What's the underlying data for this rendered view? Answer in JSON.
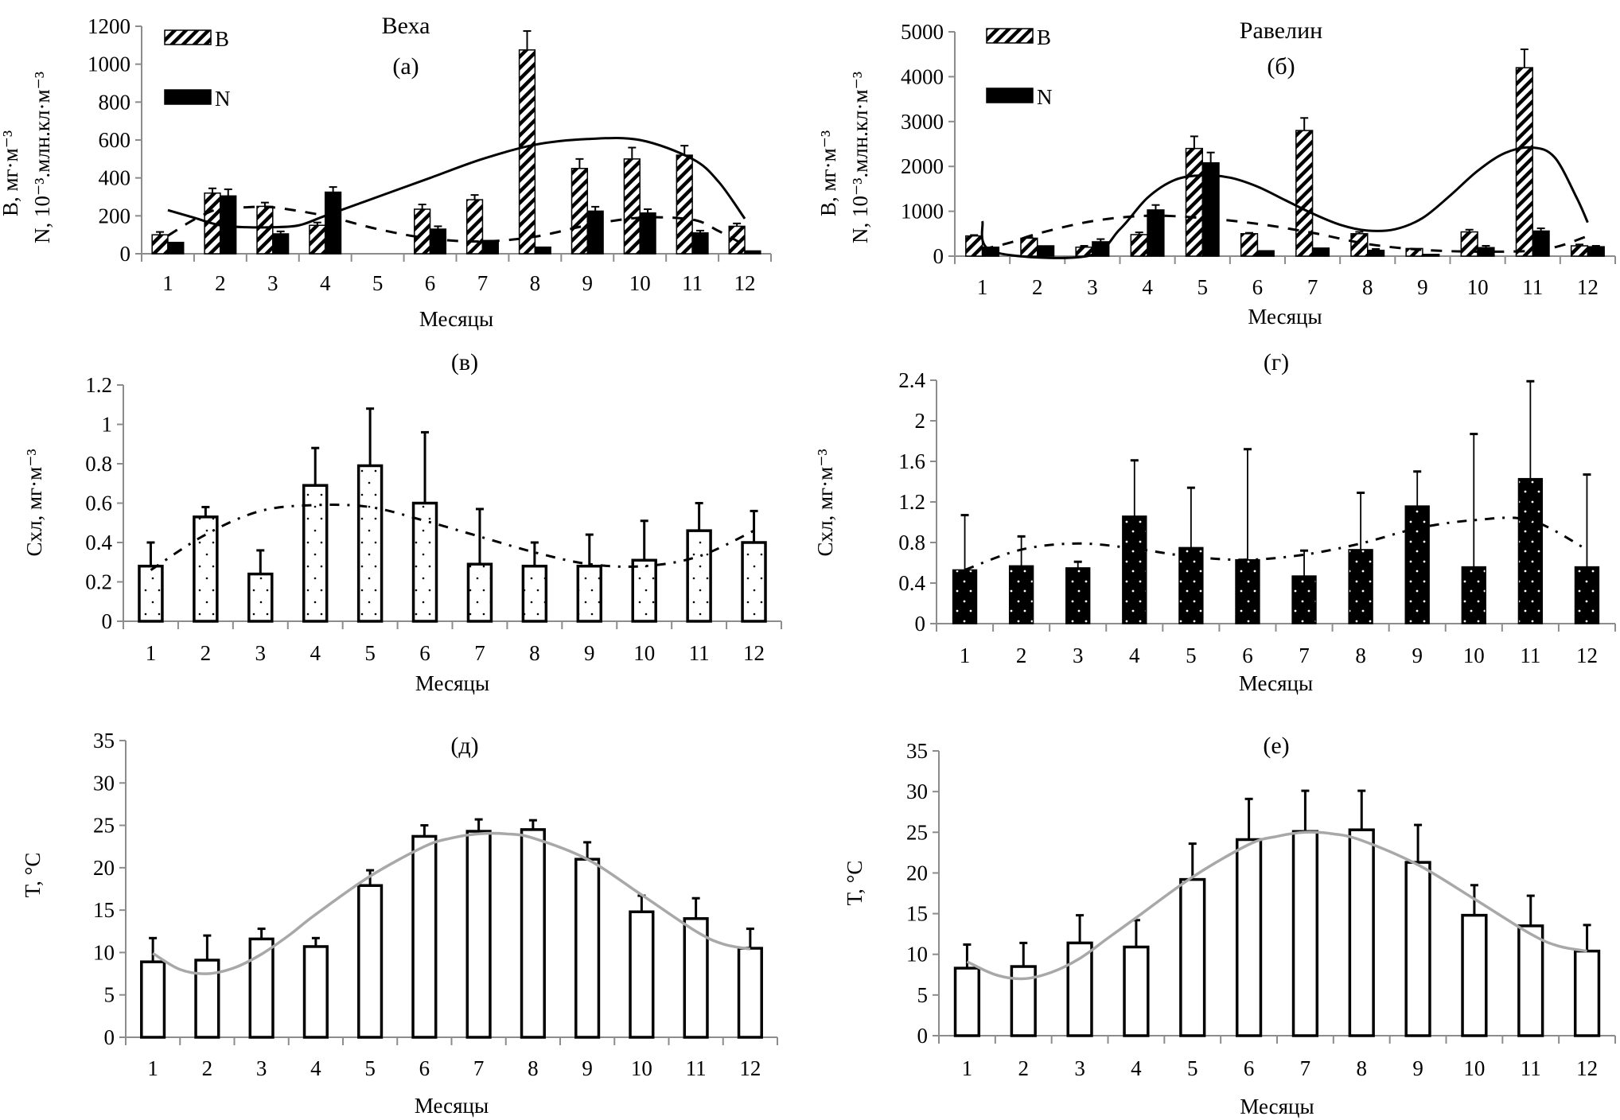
{
  "chart_data": [
    {
      "id": "a",
      "type": "bar",
      "title": "Веха",
      "panel_label": "(а)",
      "xlabel": "Месяцы",
      "ylabel_line1": "B, мг·м⁻³",
      "ylabel_line2": "N, 10⁻³.млн.кл·м⁻³",
      "categories": [
        "1",
        "2",
        "3",
        "4",
        "5",
        "6",
        "7",
        "8",
        "9",
        "10",
        "11",
        "12"
      ],
      "yticks": [
        0,
        200,
        400,
        600,
        800,
        1000,
        1200
      ],
      "ylim": [
        0,
        1200
      ],
      "legend": [
        {
          "name": "B",
          "pattern": "hatch"
        },
        {
          "name": "N",
          "pattern": "solid"
        }
      ],
      "legend_position": "top-left",
      "series": [
        {
          "name": "B",
          "pattern": "hatch",
          "values": [
            100,
            320,
            250,
            150,
            0,
            235,
            285,
            1075,
            450,
            500,
            520,
            145
          ],
          "error_top": [
            115,
            345,
            270,
            165,
            null,
            260,
            310,
            1175,
            500,
            560,
            570,
            160
          ]
        },
        {
          "name": "N",
          "pattern": "solid",
          "values": [
            60,
            305,
            105,
            325,
            0,
            130,
            70,
            35,
            225,
            215,
            110,
            15
          ],
          "error_top": [
            null,
            340,
            118,
            352,
            null,
            145,
            null,
            null,
            248,
            235,
            122,
            null
          ]
        }
      ],
      "trendlines": [
        {
          "name": "B trend",
          "style": "solid",
          "x": [
            1,
            1.5,
            2,
            2.5,
            3,
            3.5,
            4,
            5,
            6,
            7,
            8,
            9,
            10,
            11,
            11.5,
            12
          ],
          "y": [
            230,
            190,
            150,
            140,
            140,
            150,
            200,
            300,
            400,
            500,
            575,
            605,
            600,
            500,
            380,
            185
          ]
        },
        {
          "name": "N trend",
          "style": "dashed",
          "x": [
            1,
            1.5,
            2,
            2.5,
            3,
            4,
            5,
            6,
            7,
            8,
            9,
            10,
            11,
            11.5,
            12
          ],
          "y": [
            95,
            180,
            240,
            245,
            245,
            200,
            130,
            80,
            65,
            90,
            150,
            190,
            180,
            120,
            45
          ]
        }
      ]
    },
    {
      "id": "b",
      "type": "bar",
      "title": "Равелин",
      "panel_label": "(б)",
      "xlabel": "Месяцы",
      "ylabel_line1": "B, мг·м⁻³",
      "ylabel_line2": "N, 10⁻³.млн.кл·м⁻³",
      "categories": [
        "1",
        "2",
        "3",
        "4",
        "5",
        "6",
        "7",
        "8",
        "9",
        "10",
        "11",
        "12"
      ],
      "yticks": [
        0,
        1000,
        2000,
        3000,
        4000,
        5000
      ],
      "ylim": [
        0,
        5000
      ],
      "legend": [
        {
          "name": "B",
          "pattern": "hatch"
        },
        {
          "name": "N",
          "pattern": "solid"
        }
      ],
      "legend_position": "top-left",
      "series": [
        {
          "name": "B",
          "pattern": "hatch",
          "values": [
            450,
            400,
            200,
            480,
            2400,
            500,
            2800,
            500,
            170,
            540,
            4200,
            230
          ],
          "error_top": [
            470,
            420,
            230,
            530,
            2670,
            520,
            3080,
            540,
            null,
            590,
            4610,
            260
          ]
        },
        {
          "name": "N",
          "pattern": "solid",
          "values": [
            200,
            230,
            320,
            1030,
            2080,
            120,
            180,
            130,
            40,
            190,
            560,
            210
          ],
          "error_top": [
            null,
            null,
            380,
            1140,
            2310,
            null,
            null,
            160,
            null,
            230,
            620,
            230
          ]
        }
      ],
      "trendlines": [
        {
          "name": "B trend",
          "style": "solid",
          "x": [
            1,
            1.2,
            2.9,
            3.5,
            4,
            4.5,
            5,
            5.5,
            6,
            6.5,
            7,
            7.5,
            8,
            8.5,
            9,
            9.5,
            10,
            10.5,
            11,
            11.4,
            11.8,
            12
          ],
          "y": [
            780,
            100,
            0,
            600,
            1300,
            1700,
            1800,
            1750,
            1550,
            1250,
            950,
            700,
            570,
            600,
            850,
            1350,
            1900,
            2300,
            2420,
            2200,
            1300,
            750
          ]
        },
        {
          "name": "N trend",
          "style": "dashed",
          "x": [
            1,
            1.5,
            2,
            3,
            4,
            5,
            6,
            7,
            8,
            9,
            10,
            11,
            11.5,
            12
          ],
          "y": [
            150,
            300,
            500,
            780,
            900,
            850,
            720,
            520,
            270,
            140,
            100,
            120,
            230,
            450
          ]
        }
      ]
    },
    {
      "id": "v",
      "type": "bar",
      "title": "",
      "panel_label": "(в)",
      "xlabel": "Месяцы",
      "ylabel": "Cхл, мг·м⁻³",
      "categories": [
        "1",
        "2",
        "3",
        "4",
        "5",
        "6",
        "7",
        "8",
        "9",
        "10",
        "11",
        "12"
      ],
      "yticks": [
        "0",
        "0.2",
        "0.4",
        "0.6",
        "0.8",
        "1",
        "1.2"
      ],
      "ylim": [
        0,
        1.2
      ],
      "series": [
        {
          "name": "Cхл",
          "pattern": "sparse-dots",
          "values": [
            0.28,
            0.53,
            0.24,
            0.69,
            0.79,
            0.6,
            0.29,
            0.28,
            0.28,
            0.31,
            0.46,
            0.4
          ],
          "error_top": [
            0.4,
            0.58,
            0.36,
            0.88,
            1.08,
            0.96,
            0.57,
            0.4,
            0.44,
            0.51,
            0.6,
            0.56
          ]
        }
      ],
      "trendlines": [
        {
          "name": "Cхл trend",
          "style": "dash-dot",
          "x": [
            1,
            2,
            3,
            4,
            5,
            6,
            7,
            8,
            9,
            10,
            11,
            12
          ],
          "y": [
            0.26,
            0.44,
            0.56,
            0.59,
            0.58,
            0.51,
            0.43,
            0.35,
            0.29,
            0.28,
            0.33,
            0.46
          ]
        }
      ]
    },
    {
      "id": "g",
      "type": "bar",
      "title": "",
      "panel_label": "(г)",
      "xlabel": "Месяцы",
      "ylabel": "Cхл, мг·м⁻³",
      "categories": [
        "1",
        "2",
        "3",
        "4",
        "5",
        "6",
        "7",
        "8",
        "9",
        "10",
        "11",
        "12"
      ],
      "yticks": [
        "0",
        "0.4",
        "0.8",
        "1.2",
        "1.6",
        "2",
        "2.4"
      ],
      "ylim": [
        0,
        2.4
      ],
      "series": [
        {
          "name": "Cхл",
          "pattern": "dark-dots",
          "values": [
            0.53,
            0.57,
            0.55,
            1.06,
            0.75,
            0.63,
            0.47,
            0.73,
            1.16,
            0.56,
            1.43,
            0.56
          ],
          "error_top": [
            1.07,
            0.86,
            0.61,
            1.61,
            1.34,
            1.72,
            0.72,
            1.29,
            1.5,
            1.87,
            2.39,
            1.47
          ]
        }
      ],
      "trendlines": [
        {
          "name": "Cхл trend",
          "style": "dash-dot",
          "x": [
            1,
            2,
            3,
            4,
            5,
            6,
            7,
            8,
            9,
            10,
            11,
            12
          ],
          "y": [
            0.53,
            0.73,
            0.79,
            0.74,
            0.66,
            0.63,
            0.68,
            0.79,
            0.94,
            1.02,
            1.02,
            0.73
          ]
        }
      ]
    },
    {
      "id": "d",
      "type": "bar",
      "title": "",
      "panel_label": "(д)",
      "xlabel": "Месяцы",
      "ylabel": "T, °C",
      "categories": [
        "1",
        "2",
        "3",
        "4",
        "5",
        "6",
        "7",
        "8",
        "9",
        "10",
        "11",
        "12"
      ],
      "yticks": [
        "0",
        "5",
        "10",
        "15",
        "20",
        "25",
        "30",
        "35"
      ],
      "ylim": [
        0,
        35
      ],
      "series": [
        {
          "name": "T",
          "pattern": "empty",
          "values": [
            8.9,
            9.1,
            11.6,
            10.7,
            17.9,
            23.7,
            24.3,
            24.5,
            21.0,
            14.8,
            14.0,
            10.5
          ],
          "error_top": [
            11.7,
            12.0,
            12.8,
            11.7,
            19.7,
            25.0,
            25.7,
            25.6,
            23.0,
            16.7,
            16.4,
            12.8
          ]
        }
      ],
      "trendlines": [
        {
          "name": "T trend",
          "style": "solid-grey",
          "x": [
            1,
            1.5,
            2,
            2.5,
            3,
            3.5,
            4,
            5,
            6,
            6.5,
            7,
            7.5,
            8,
            9,
            10,
            11,
            11.5,
            12
          ],
          "y": [
            9.9,
            8.0,
            7.5,
            8.2,
            9.8,
            12.0,
            14.5,
            19.0,
            22.5,
            23.5,
            24.0,
            24.0,
            23.5,
            21.0,
            16.8,
            12.5,
            11.0,
            10.4
          ]
        }
      ]
    },
    {
      "id": "e",
      "type": "bar",
      "title": "",
      "panel_label": "(е)",
      "xlabel": "Месяцы",
      "ylabel": "T, °C",
      "categories": [
        "1",
        "2",
        "3",
        "4",
        "5",
        "6",
        "7",
        "8",
        "9",
        "10",
        "11",
        "12"
      ],
      "yticks": [
        "0",
        "5",
        "10",
        "15",
        "20",
        "25",
        "30",
        "35"
      ],
      "ylim": [
        0,
        35
      ],
      "series": [
        {
          "name": "T",
          "pattern": "empty",
          "values": [
            8.3,
            8.5,
            11.4,
            10.9,
            19.2,
            24.1,
            25.1,
            25.3,
            21.3,
            14.8,
            13.5,
            10.4
          ],
          "error_top": [
            11.2,
            11.4,
            14.8,
            14.2,
            23.6,
            29.1,
            30.1,
            30.1,
            25.9,
            18.5,
            17.2,
            13.6
          ]
        }
      ],
      "trendlines": [
        {
          "name": "T trend",
          "style": "solid-grey",
          "x": [
            1,
            1.5,
            2,
            2.5,
            3,
            3.5,
            4,
            5,
            6,
            6.5,
            7,
            7.5,
            8,
            9,
            10,
            11,
            11.5,
            12
          ],
          "y": [
            9.1,
            7.5,
            7.0,
            7.8,
            9.5,
            12.0,
            14.5,
            19.5,
            23.5,
            24.5,
            25.0,
            24.8,
            24.0,
            21.0,
            16.8,
            12.5,
            11.0,
            10.4
          ]
        }
      ]
    }
  ]
}
